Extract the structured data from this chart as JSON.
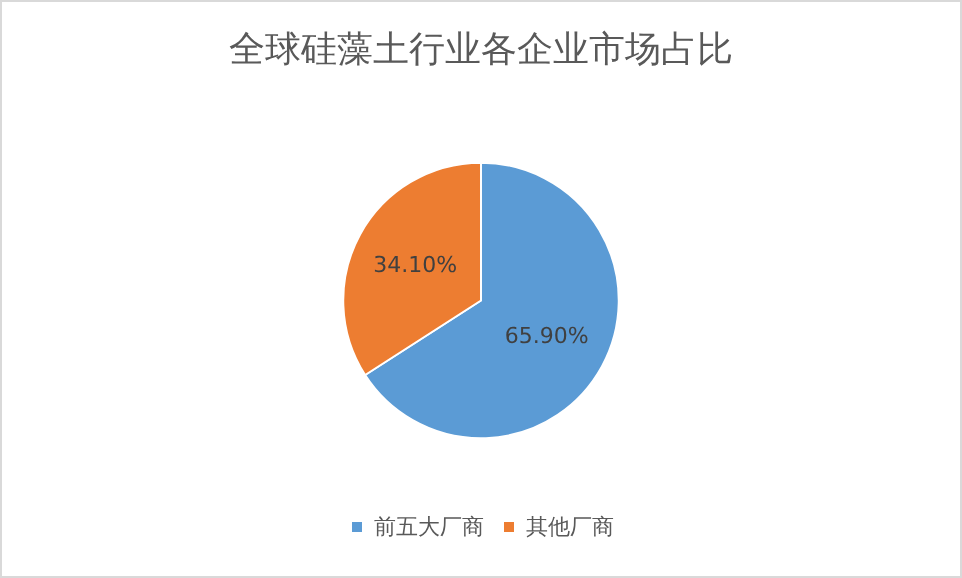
{
  "chart_data": {
    "type": "pie",
    "title": "全球硅藻土行业各企业市场占比",
    "categories": [
      "前五大厂商",
      "其他厂商"
    ],
    "values": [
      65.9,
      34.1
    ],
    "colors": [
      "#5b9bd5",
      "#ed7d31"
    ],
    "value_labels": [
      "65.90%",
      "34.10%"
    ],
    "legend": "bottom"
  }
}
